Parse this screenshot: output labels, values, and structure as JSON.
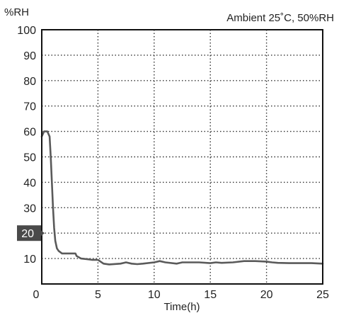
{
  "chart_data": {
    "type": "line",
    "title": "",
    "annotation": "Ambient 25˚C, 50%RH",
    "ylabel": "%RH",
    "xlabel": "Time(h)",
    "xlim": [
      0,
      25
    ],
    "ylim": [
      0,
      100
    ],
    "x_ticks": [
      "0",
      "5",
      "10",
      "15",
      "20",
      "25"
    ],
    "y_ticks": [
      "10",
      "20",
      "30",
      "40",
      "50",
      "60",
      "70",
      "80",
      "90",
      "100"
    ],
    "highlight_tick": "20",
    "grid": true,
    "colors": {
      "line": "#5a5a5a",
      "grid": "#333333",
      "highlight_bg": "#4a4a4a"
    },
    "series": [
      {
        "x": [
          0,
          0.2,
          0.5,
          0.7,
          0.8,
          0.9,
          1.0,
          1.1,
          1.2,
          1.35,
          1.5,
          1.8,
          2.0,
          2.6,
          3.0,
          3.1,
          3.5,
          4.5,
          5.0,
          5.5,
          6.0,
          7.0,
          7.5,
          8.0,
          8.5,
          9.0,
          10.0,
          10.5,
          11.0,
          12.0,
          12.5,
          13.0,
          14.0,
          15.0,
          15.5,
          16.0,
          17.0,
          18.0,
          18.5,
          19.0,
          20.0,
          20.5,
          21.0,
          22.0,
          23.0,
          24.0,
          25.0
        ],
        "y": [
          58,
          60,
          60,
          58,
          50,
          40,
          30,
          22,
          17,
          14,
          13,
          12,
          12,
          12,
          12,
          11,
          10,
          9.5,
          9.5,
          8,
          7.7,
          8,
          8.5,
          8,
          7.8,
          8,
          8.5,
          9,
          8.5,
          8,
          8.5,
          8.5,
          8.5,
          8.2,
          8.5,
          8.3,
          8.5,
          9,
          9,
          9,
          8.8,
          8.5,
          8.3,
          8.2,
          8.2,
          8.2,
          8
        ]
      }
    ]
  }
}
